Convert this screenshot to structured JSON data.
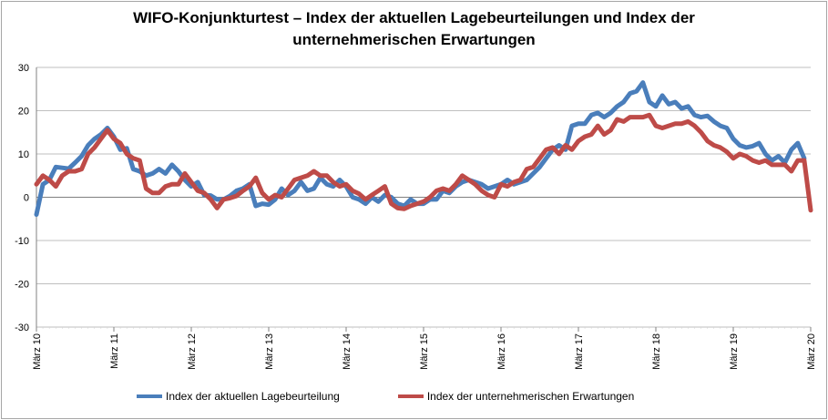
{
  "colors": {
    "series1": "#4a7ebb",
    "series2": "#be4b48",
    "grid": "#bfbfbf",
    "axis": "#808080"
  },
  "chart_data": {
    "type": "line",
    "title_line1": "WIFO-Konjunkturtest – Index der aktuellen Lagebeurteilungen und Index der",
    "title_line2": "unternehmerischen Erwartungen",
    "ylim": [
      -30,
      30
    ],
    "y_ticks": [
      "30",
      "20",
      "10",
      "0",
      "-10",
      "-20",
      "-30"
    ],
    "y_tick_values": [
      30,
      20,
      10,
      0,
      -10,
      -20,
      -30
    ],
    "x_tick_labels": [
      "März 10",
      "März 11",
      "März 12",
      "März 13",
      "März 14",
      "März 15",
      "März 16",
      "März 17",
      "März 18",
      "März 19",
      "März 20"
    ],
    "x_start": "2010-03",
    "x_end": "2020-03",
    "grid": "horizontal",
    "legend_position": "bottom",
    "series": [
      {
        "name": "Index der aktuellen Lagebeurteilung",
        "values": [
          -4,
          3,
          4,
          7,
          6.8,
          6.6,
          8,
          9.5,
          12,
          13.5,
          14.5,
          16,
          14,
          11,
          11.3,
          6.5,
          6,
          5,
          5.5,
          6.5,
          5.5,
          7.5,
          6,
          4,
          2.5,
          3.5,
          0.5,
          0.4,
          -0.5,
          -0.5,
          0.3,
          1.5,
          2,
          3,
          -2,
          -1.5,
          -1.7,
          -0.5,
          2,
          0.5,
          1.5,
          3.5,
          1.5,
          2,
          4.5,
          3,
          2.5,
          4,
          2.5,
          0,
          -0.5,
          -1.5,
          0,
          -1,
          0.5,
          0,
          -1.5,
          -2,
          -0.5,
          -1.5,
          -1.5,
          -0.5,
          -0.5,
          1.5,
          1,
          2.5,
          3.5,
          4,
          3.5,
          3,
          2,
          2.5,
          3,
          4,
          3,
          3.5,
          4,
          5.5,
          7,
          9,
          11,
          12,
          11,
          16.5,
          17,
          17,
          19,
          19.5,
          18.5,
          19.5,
          21,
          22,
          24,
          24.5,
          26.5,
          22,
          21,
          23.5,
          21.5,
          22,
          20.5,
          21,
          19,
          18.5,
          18.8,
          17.5,
          16.5,
          16,
          13.5,
          12,
          11.5,
          11.8,
          12.5,
          10,
          8.5,
          9.5,
          8,
          11,
          12.5,
          9
        ]
      },
      {
        "name": "Index der unternehmerischen Erwartungen",
        "values": [
          3,
          5,
          4,
          2.5,
          5,
          6,
          6,
          6.5,
          10,
          11.5,
          13.5,
          15.5,
          13.5,
          12.5,
          10,
          9,
          8.5,
          2,
          1,
          1,
          2.5,
          3,
          3,
          5.5,
          3.5,
          1.5,
          1,
          -0.5,
          -2.5,
          -0.5,
          -0.2,
          0.3,
          1.5,
          2.5,
          4.5,
          1,
          -0.5,
          0.5,
          0,
          2,
          4,
          4.5,
          5,
          6,
          5,
          5,
          3.5,
          2.5,
          3,
          1.5,
          0.8,
          -0.5,
          0.5,
          1.5,
          2.5,
          -1.5,
          -2.5,
          -2.7,
          -2,
          -1.5,
          -1,
          0,
          1.5,
          2,
          1.5,
          3,
          5,
          4,
          3,
          1.5,
          0.5,
          0,
          3,
          2.5,
          3.5,
          4,
          6.5,
          7,
          9,
          11,
          11.5,
          10,
          12,
          11,
          13,
          14,
          14.5,
          16.5,
          14.5,
          15.5,
          18,
          17.5,
          18.5,
          18.5,
          18.5,
          19,
          16.5,
          16,
          16.5,
          17,
          17,
          17.5,
          16.5,
          15,
          13,
          12,
          11.5,
          10.5,
          9,
          10,
          9.5,
          8.5,
          8,
          8.5,
          7.5,
          7.5,
          7.5,
          6,
          8.5,
          8.5,
          -3
        ]
      }
    ]
  }
}
